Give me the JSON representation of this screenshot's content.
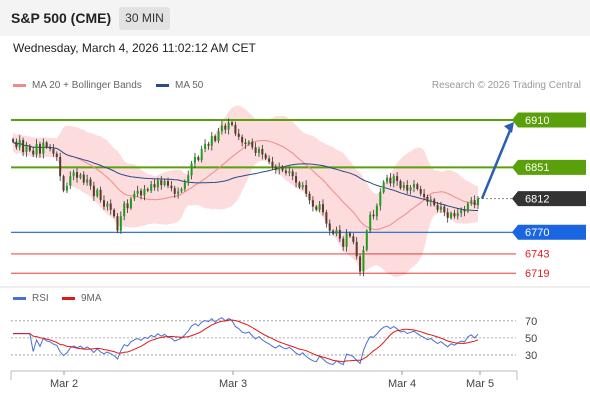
{
  "header": {
    "title": "S&P 500 (CME)",
    "timeframe": "30 MIN"
  },
  "timestamp": "Wednesday, March 4, 2026 11:02:12 AM CET",
  "legend": {
    "ma20": {
      "label": "MA 20 + Bollinger Bands",
      "color": "#f08a8a"
    },
    "ma50": {
      "label": "MA 50",
      "color": "#2b4a8c"
    }
  },
  "credit": "Research © 2026 Trading Central",
  "rsi_legend": {
    "rsi": {
      "label": "RSI",
      "color": "#4a6fd6"
    },
    "ma9": {
      "label": "9MA",
      "color": "#e01818"
    }
  },
  "chart_data": [
    {
      "type": "candlestick",
      "x_labels": [
        "Mar 2",
        "Mar 3",
        "Mar 4",
        "Mar 5"
      ],
      "ylim": [
        6708,
        6935
      ],
      "bars": [
        {
          "c": 6883
        },
        {
          "c": 6876
        },
        {
          "c": 6885
        },
        {
          "c": 6870
        },
        {
          "c": 6878
        },
        {
          "c": 6872
        },
        {
          "c": 6867
        },
        {
          "c": 6880
        },
        {
          "c": 6868
        },
        {
          "c": 6882
        },
        {
          "c": 6876
        },
        {
          "c": 6874
        },
        {
          "c": 6868
        },
        {
          "c": 6864
        },
        {
          "c": 6840
        },
        {
          "c": 6822
        },
        {
          "c": 6828
        },
        {
          "c": 6840
        },
        {
          "c": 6845
        },
        {
          "c": 6838
        },
        {
          "c": 6842
        },
        {
          "c": 6832
        },
        {
          "c": 6836
        },
        {
          "c": 6828
        },
        {
          "c": 6815
        },
        {
          "c": 6823
        },
        {
          "c": 6810
        },
        {
          "c": 6802
        },
        {
          "c": 6806
        },
        {
          "c": 6798
        },
        {
          "c": 6790
        },
        {
          "c": 6772
        },
        {
          "c": 6790
        },
        {
          "c": 6806
        },
        {
          "c": 6800
        },
        {
          "c": 6812
        },
        {
          "c": 6818
        },
        {
          "c": 6822
        },
        {
          "c": 6816
        },
        {
          "c": 6824
        },
        {
          "c": 6822
        },
        {
          "c": 6830
        },
        {
          "c": 6826
        },
        {
          "c": 6835
        },
        {
          "c": 6829
        },
        {
          "c": 6834
        },
        {
          "c": 6828
        },
        {
          "c": 6825
        },
        {
          "c": 6818
        },
        {
          "c": 6821
        },
        {
          "c": 6824
        },
        {
          "c": 6832
        },
        {
          "c": 6841
        },
        {
          "c": 6856
        },
        {
          "c": 6864
        },
        {
          "c": 6860
        },
        {
          "c": 6874
        },
        {
          "c": 6880
        },
        {
          "c": 6878
        },
        {
          "c": 6890
        },
        {
          "c": 6884
        },
        {
          "c": 6896
        },
        {
          "c": 6903
        },
        {
          "c": 6898
        },
        {
          "c": 6907
        },
        {
          "c": 6904
        },
        {
          "c": 6893
        },
        {
          "c": 6889
        },
        {
          "c": 6882
        },
        {
          "c": 6880
        },
        {
          "c": 6883
        },
        {
          "c": 6876
        },
        {
          "c": 6869
        },
        {
          "c": 6874
        },
        {
          "c": 6867
        },
        {
          "c": 6862
        },
        {
          "c": 6858
        },
        {
          "c": 6852
        },
        {
          "c": 6848
        },
        {
          "c": 6852
        },
        {
          "c": 6847
        },
        {
          "c": 6844
        },
        {
          "c": 6846
        },
        {
          "c": 6840
        },
        {
          "c": 6832
        },
        {
          "c": 6826
        },
        {
          "c": 6829
        },
        {
          "c": 6818
        },
        {
          "c": 6810
        },
        {
          "c": 6802
        },
        {
          "c": 6798
        },
        {
          "c": 6805
        },
        {
          "c": 6795
        },
        {
          "c": 6781
        },
        {
          "c": 6772
        },
        {
          "c": 6768
        },
        {
          "c": 6773
        },
        {
          "c": 6762
        },
        {
          "c": 6752
        },
        {
          "c": 6769
        },
        {
          "c": 6765
        },
        {
          "c": 6758
        },
        {
          "c": 6740
        },
        {
          "c": 6721
        },
        {
          "c": 6748
        },
        {
          "c": 6772
        },
        {
          "c": 6792
        },
        {
          "c": 6790
        },
        {
          "c": 6803
        },
        {
          "c": 6820
        },
        {
          "c": 6833
        },
        {
          "c": 6838
        },
        {
          "c": 6831
        },
        {
          "c": 6840
        },
        {
          "c": 6834
        },
        {
          "c": 6825
        },
        {
          "c": 6829
        },
        {
          "c": 6822
        },
        {
          "c": 6826
        },
        {
          "c": 6830
        },
        {
          "c": 6824
        },
        {
          "c": 6818
        },
        {
          "c": 6814
        },
        {
          "c": 6808
        },
        {
          "c": 6811
        },
        {
          "c": 6804
        },
        {
          "c": 6798
        },
        {
          "c": 6802
        },
        {
          "c": 6795
        },
        {
          "c": 6788
        },
        {
          "c": 6794
        },
        {
          "c": 6790
        },
        {
          "c": 6794
        },
        {
          "c": 6798
        },
        {
          "c": 6796
        },
        {
          "c": 6806
        },
        {
          "c": 6810
        },
        {
          "c": 6804
        },
        {
          "c": 6812
        }
      ],
      "levels": [
        {
          "label": "6910",
          "value": 6910,
          "kind": "resistance-2",
          "color": "#5aa00a"
        },
        {
          "label": "6851",
          "value": 6851,
          "kind": "resistance-1",
          "color": "#5aa00a"
        },
        {
          "label": "6812",
          "value": 6812,
          "kind": "last-price",
          "color": "#333333"
        },
        {
          "label": "6770",
          "value": 6770,
          "kind": "pivot",
          "color": "#1a66e0"
        },
        {
          "label": "6743",
          "value": 6743,
          "kind": "support-1",
          "color": "#e02020"
        },
        {
          "label": "6719",
          "value": 6719,
          "kind": "support-2",
          "color": "#e02020"
        }
      ],
      "projection": {
        "from": 6812,
        "to": 6910,
        "color": "#2b5fb0"
      },
      "series": [
        {
          "name": "MA 20 + Bollinger Bands",
          "color": "#f08a8a"
        },
        {
          "name": "MA 50",
          "color": "#2b4a8c"
        }
      ]
    },
    {
      "type": "line",
      "ylim": [
        10,
        85
      ],
      "ticks": [
        70,
        50,
        30
      ],
      "series": [
        {
          "name": "RSI",
          "color": "#4a6fd6"
        },
        {
          "name": "9MA",
          "color": "#e01818"
        }
      ]
    }
  ]
}
